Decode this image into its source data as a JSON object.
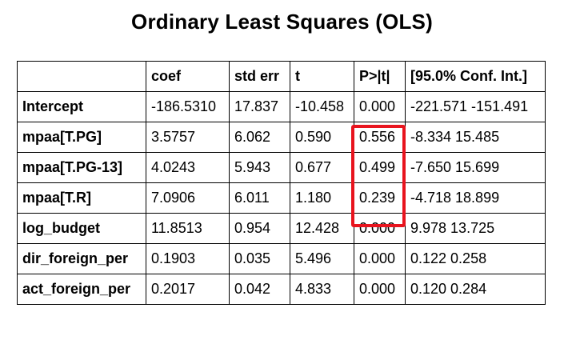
{
  "title": "Ordinary Least Squares (OLS)",
  "table": {
    "headers": [
      "",
      "coef",
      "std err",
      "t",
      "P>|t|",
      "[95.0% Conf. Int.]"
    ],
    "rows": [
      [
        "Intercept",
        "-186.5310",
        "17.837",
        "-10.458",
        "0.000",
        "-221.571 -151.491"
      ],
      [
        "mpaa[T.PG]",
        "3.5757",
        "6.062",
        "0.590",
        "0.556",
        "-8.334 15.485"
      ],
      [
        "mpaa[T.PG-13]",
        "4.0243",
        "5.943",
        "0.677",
        "0.499",
        "-7.650 15.699"
      ],
      [
        "mpaa[T.R]",
        "7.0906",
        "6.011",
        "1.180",
        "0.239",
        "-4.718 18.899"
      ],
      [
        "log_budget",
        "11.8513",
        "0.954",
        "12.428",
        "0.000",
        "9.978 13.725"
      ],
      [
        "dir_foreign_per",
        "0.1903",
        "0.035",
        "5.496",
        "0.000",
        "0.122 0.258"
      ],
      [
        "act_foreign_per",
        "0.2017",
        "0.042",
        "4.833",
        "0.000",
        "0.120 0.284"
      ]
    ]
  },
  "highlight": {
    "color": "#e8141e",
    "column": "P>|t|",
    "rows": [
      "mpaa[T.PG]",
      "mpaa[T.PG-13]",
      "mpaa[T.R]"
    ]
  }
}
